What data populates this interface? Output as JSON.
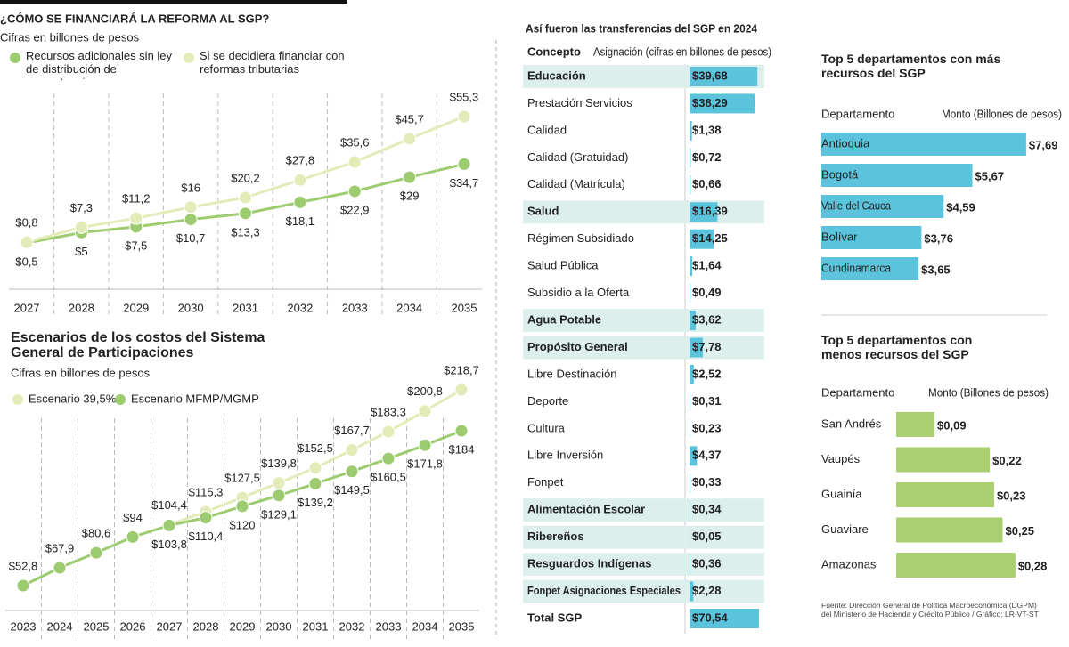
{
  "chart_data": [
    {
      "type": "line",
      "title": "¿CÓMO SE FINANCIARÁ LA REFORMA AL SGP?",
      "subtitle": "Cifras en billones de pesos",
      "categories": [
        "2027",
        "2028",
        "2029",
        "2030",
        "2031",
        "2032",
        "2033",
        "2034",
        "2035"
      ],
      "series": [
        {
          "name": "Recursos adicionales sin ley de distribución de competencias",
          "color": "#9ccc6f",
          "values": [
            0.5,
            5,
            7.5,
            10.7,
            13.3,
            18.1,
            22.9,
            29,
            34.7
          ],
          "value_labels": [
            "$0,5",
            "$5",
            "$7,5",
            "$10,7",
            "$13,3",
            "$18,1",
            "$22,9",
            "$29",
            "$34,7"
          ]
        },
        {
          "name": "Si se decidiera financiar con reformas tributarias",
          "color": "#e3ebb8",
          "values": [
            0.8,
            7.3,
            11.2,
            16,
            20.2,
            27.8,
            35.6,
            45.7,
            55.3
          ],
          "value_labels": [
            "$0,8",
            "$7,3",
            "$11,2",
            "$16",
            "$20,2",
            "$27,8",
            "$35,6",
            "$45,7",
            "$55,3"
          ]
        }
      ]
    },
    {
      "type": "line",
      "title": "Escenarios de los costos del Sistema General de Participaciones",
      "subtitle": "Cifras en billones de pesos",
      "categories": [
        "2023",
        "2024",
        "2025",
        "2026",
        "2027",
        "2028",
        "2029",
        "2030",
        "2031",
        "2032",
        "2033",
        "2034",
        "2035"
      ],
      "series": [
        {
          "name": "Escenario 39,5%",
          "color": "#e3ebb8",
          "values": [
            null,
            null,
            null,
            null,
            104.4,
            115.3,
            127.5,
            139.8,
            152.5,
            167.7,
            183.3,
            200.8,
            218.7
          ],
          "value_labels": [
            null,
            null,
            null,
            null,
            "$104,4",
            "$115,3",
            "$127,5",
            "$139,8",
            "$152,5",
            "$167,7",
            "$183,3",
            "$200,8",
            "$218,7"
          ]
        },
        {
          "name": "Escenario MFMP/MGMP",
          "color": "#9ccc6f",
          "values": [
            52.8,
            67.9,
            80.6,
            94,
            103.8,
            110.4,
            120,
            129.1,
            139.2,
            149.5,
            160.5,
            171.8,
            184
          ],
          "value_labels": [
            "$52,8",
            "$67,9",
            "$80,6",
            "$94",
            "$103,8",
            "$110,4",
            "$120",
            "$129,1",
            "$139,2",
            "$149,5",
            "$160,5",
            "$171,8",
            "$184"
          ]
        }
      ]
    },
    {
      "type": "bar",
      "title": "Así fueron las transferencias del SGP en 2024",
      "column_headers": [
        "Concepto",
        "Asignación (cifras en billones de pesos)"
      ],
      "categories": [
        "Educación",
        "Prestación Servicios",
        "Calidad",
        "Calidad (Gratuidad)",
        "Calidad (Matrícula)",
        "Salud",
        "Régimen Subsidiado",
        "Salud Pública",
        "Subsidio a la Oferta",
        "Agua Potable",
        "Propósito General",
        "Libre Destinación",
        "Deporte",
        "Cultura",
        "Libre Inversión",
        "Fonpet",
        "Alimentación Escolar",
        "Ribereños",
        "Resguardos Indígenas",
        "Fonpet Asignaciones Especiales",
        "Total SGP"
      ],
      "values": [
        39.68,
        38.29,
        1.38,
        0.72,
        0.66,
        16.39,
        14.25,
        1.64,
        0.49,
        3.62,
        7.78,
        2.52,
        0.31,
        0.23,
        4.37,
        0.33,
        0.34,
        0.05,
        0.36,
        2.28,
        70.54
      ],
      "value_labels": [
        "$39,68",
        "$38,29",
        "$1,38",
        "$0,72",
        "$0,66",
        "$16,39",
        "$14,25",
        "$1,64",
        "$0,49",
        "$3,62",
        "$7,78",
        "$2,52",
        "$0,31",
        "$0,23",
        "$4,37",
        "$0,33",
        "$0,34",
        "$0,05",
        "$0,36",
        "$2,28",
        "$70,54"
      ],
      "bold": [
        true,
        false,
        false,
        false,
        false,
        true,
        false,
        false,
        false,
        true,
        true,
        false,
        false,
        false,
        false,
        false,
        true,
        true,
        true,
        true,
        true
      ],
      "shaded": [
        true,
        false,
        false,
        false,
        false,
        true,
        false,
        false,
        false,
        true,
        true,
        false,
        false,
        false,
        false,
        false,
        true,
        true,
        true,
        true,
        false
      ],
      "color": "#5bc4dc"
    },
    {
      "type": "bar",
      "title": "Top 5 departamentos con más recursos del SGP",
      "column_headers": [
        "Departamento",
        "Monto (Billones de pesos)"
      ],
      "categories": [
        "Antioquia",
        "Bogotá",
        "Valle del Cauca",
        "Bolívar",
        "Cundinamarca"
      ],
      "values": [
        7.69,
        5.67,
        4.59,
        3.76,
        3.65
      ],
      "value_labels": [
        "$7,69",
        "$5,67",
        "$4,59",
        "$3,76",
        "$3,65"
      ],
      "color": "#5bc4dc"
    },
    {
      "type": "bar",
      "title": "Top 5 departamentos con menos recursos del SGP",
      "column_headers": [
        "Departamento",
        "Monto (Billones de pesos)"
      ],
      "categories": [
        "San Andrés",
        "Vaupés",
        "Guainía",
        "Guaviare",
        "Amazonas"
      ],
      "values": [
        0.09,
        0.22,
        0.23,
        0.25,
        0.28
      ],
      "value_labels": [
        "$0,09",
        "$0,22",
        "$0,23",
        "$0,25",
        "$0,28"
      ],
      "color": "#a9cf6f"
    }
  ],
  "source": "Fuente: Dirección General de Política Macroeconómica (DGPM) del Ministerio de Hacienda y Crédito Público / Gráfico: LR-VT-ST"
}
